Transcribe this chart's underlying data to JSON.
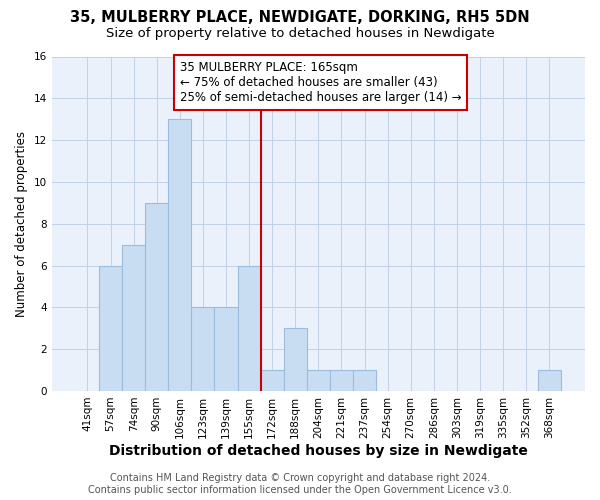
{
  "title": "35, MULBERRY PLACE, NEWDIGATE, DORKING, RH5 5DN",
  "subtitle": "Size of property relative to detached houses in Newdigate",
  "xlabel": "Distribution of detached houses by size in Newdigate",
  "ylabel": "Number of detached properties",
  "categories": [
    "41sqm",
    "57sqm",
    "74sqm",
    "90sqm",
    "106sqm",
    "123sqm",
    "139sqm",
    "155sqm",
    "172sqm",
    "188sqm",
    "204sqm",
    "221sqm",
    "237sqm",
    "254sqm",
    "270sqm",
    "286sqm",
    "303sqm",
    "319sqm",
    "335sqm",
    "352sqm",
    "368sqm"
  ],
  "values": [
    0,
    6,
    7,
    9,
    13,
    4,
    4,
    6,
    1,
    3,
    1,
    1,
    1,
    0,
    0,
    0,
    0,
    0,
    0,
    0,
    1
  ],
  "bar_color": "#c8ddf2",
  "bar_edge_color": "#9bbcdc",
  "grid_color": "#c0d0e8",
  "background_color": "#eaf1fb",
  "red_line_x": 7.5,
  "annotation_line1": "35 MULBERRY PLACE: 165sqm",
  "annotation_line2": "← 75% of detached houses are smaller (43)",
  "annotation_line3": "25% of semi-detached houses are larger (14) →",
  "annotation_border_color": "#cc0000",
  "footer_line1": "Contains HM Land Registry data © Crown copyright and database right 2024.",
  "footer_line2": "Contains public sector information licensed under the Open Government Licence v3.0.",
  "ylim": [
    0,
    16
  ],
  "yticks": [
    0,
    2,
    4,
    6,
    8,
    10,
    12,
    14,
    16
  ],
  "title_fontsize": 10.5,
  "subtitle_fontsize": 9.5,
  "xlabel_fontsize": 10,
  "ylabel_fontsize": 8.5,
  "tick_fontsize": 7.5,
  "annotation_fontsize": 8.5,
  "footer_fontsize": 7
}
